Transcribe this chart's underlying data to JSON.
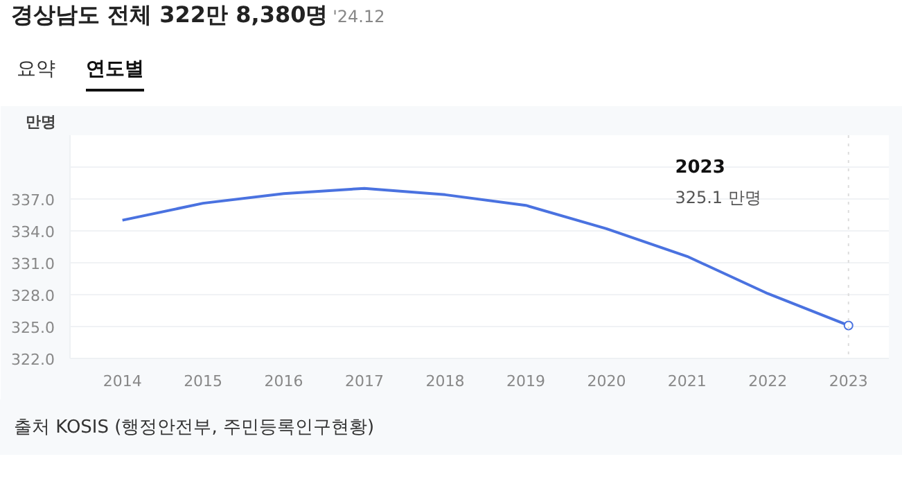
{
  "chart_data": {
    "type": "line",
    "title": "경상남도 전체 322만 8,380명",
    "subtitle": "'24.12",
    "ylabel": "만명",
    "x": [
      2014,
      2015,
      2016,
      2017,
      2018,
      2019,
      2020,
      2021,
      2022,
      2023
    ],
    "series": [
      {
        "color": "#4a72e0",
        "values": [
          335.0,
          336.6,
          337.5,
          338.0,
          337.4,
          336.4,
          334.2,
          331.6,
          328.1,
          325.1
        ]
      }
    ],
    "xlim": [
      2013.35,
      2023.5
    ],
    "xticks": [
      2014,
      2015,
      2016,
      2017,
      2018,
      2019,
      2020,
      2021,
      2022,
      2023
    ],
    "ylim": [
      322,
      343
    ],
    "yticks": [
      {
        "value": 322,
        "label": "322.0"
      },
      {
        "value": 325,
        "label": "325.0"
      },
      {
        "value": 328,
        "label": "328.0"
      },
      {
        "value": 331,
        "label": "331.0"
      },
      {
        "value": 334,
        "label": "334.0"
      },
      {
        "value": 337,
        "label": "337.0"
      },
      {
        "value": 340,
        "label": null
      }
    ],
    "grid": "y",
    "marker": "none",
    "line_style": "solid",
    "ref_lines": [
      {
        "axis": "x",
        "value": 2023,
        "label": null,
        "color": "#dddddd",
        "line_style": "dotted"
      }
    ],
    "annotations": [
      "요약",
      "연도별",
      "2023\n325.1 만명",
      "출처 KOSIS (행정안전부, 주민등록인구현황)"
    ]
  }
}
